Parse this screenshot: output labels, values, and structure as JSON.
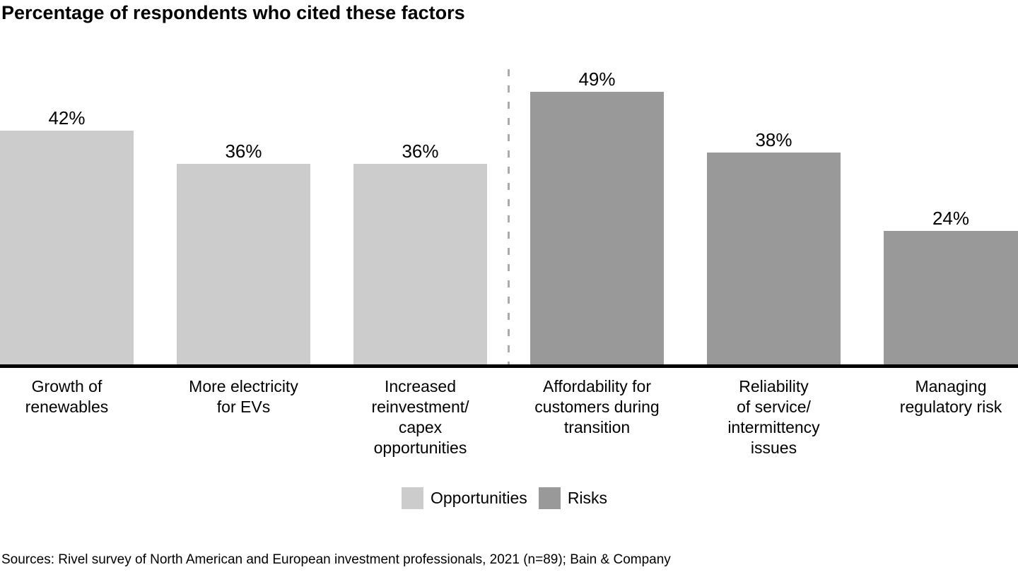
{
  "header": {
    "title": "Percentage of respondents who cited these factors"
  },
  "chart_data": {
    "type": "bar",
    "title": "Percentage of respondents who cited these factors",
    "categories": [
      "Growth of\nrenewables",
      "More electricity\nfor EVs",
      "Increased\nreinvestment/\ncapex\nopportunities",
      "Affordability for\ncustomers during\ntransition",
      "Reliability\nof service/\nintermittency\nissues",
      "Managing\nregulatory risk"
    ],
    "values": [
      42,
      36,
      36,
      49,
      38,
      24
    ],
    "value_labels": [
      "42%",
      "36%",
      "36%",
      "49%",
      "38%",
      "24%"
    ],
    "groups": [
      "opportunity",
      "opportunity",
      "opportunity",
      "risk",
      "risk",
      "risk"
    ],
    "group_colors": {
      "opportunity": "#cccccc",
      "risk": "#999999"
    },
    "separator_after_index": 2,
    "xlabel": "",
    "ylabel": "",
    "ylim": [
      0,
      52
    ],
    "grid": "off",
    "legend_position": "bottom",
    "legend": [
      {
        "label": "Opportunities",
        "color": "#cccccc"
      },
      {
        "label": "Risks",
        "color": "#999999"
      }
    ]
  },
  "footer": {
    "source": "Sources: Rivel survey of North American and European investment professionals, 2021 (n=89); Bain & Company"
  }
}
